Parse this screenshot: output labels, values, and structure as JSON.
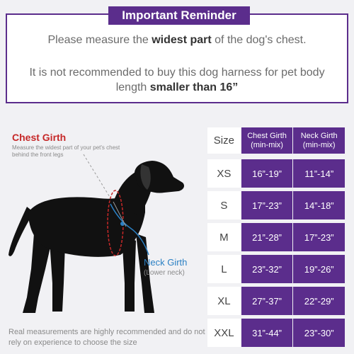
{
  "reminder": {
    "title": "Important Reminder",
    "line1_pre": "Please measure the ",
    "line1_bold": "widest part",
    "line1_post": " of the dog's chest.",
    "line2_pre": "It is not recommended to buy this dog harness for pet body length ",
    "line2_bold": "smaller than 16”"
  },
  "diagram": {
    "chest_label": "Chest Girth",
    "chest_desc": "Measure the widest part of your pet's chest behind the front legs",
    "neck_label": "Neck Girth",
    "neck_desc": "(Lower neck)"
  },
  "footnote": "Real measurements are highly recommended and do not rely on experience to choose the size",
  "size_table": {
    "header": {
      "size": "Size",
      "chest_line1": "Chest Girth",
      "chest_line2": "(min-mix)",
      "neck_line1": "Neck Girth",
      "neck_line2": "(min-mix)"
    },
    "rows": [
      {
        "size": "XS",
        "chest": "16”-19”",
        "neck": "11”-14”"
      },
      {
        "size": "S",
        "chest": "17”-23”",
        "neck": "14”-18”"
      },
      {
        "size": "M",
        "chest": "21”-28”",
        "neck": "17”-23”"
      },
      {
        "size": "L",
        "chest": "23”-32”",
        "neck": "19”-26”"
      },
      {
        "size": "XL",
        "chest": "27”-37”",
        "neck": "22”-29”"
      },
      {
        "size": "XXL",
        "chest": "31”-44”",
        "neck": "23”-30”"
      }
    ]
  },
  "colors": {
    "accent_purple": "#5b2d8c",
    "chest_red": "#c62828",
    "neck_blue": "#2b80c4"
  }
}
